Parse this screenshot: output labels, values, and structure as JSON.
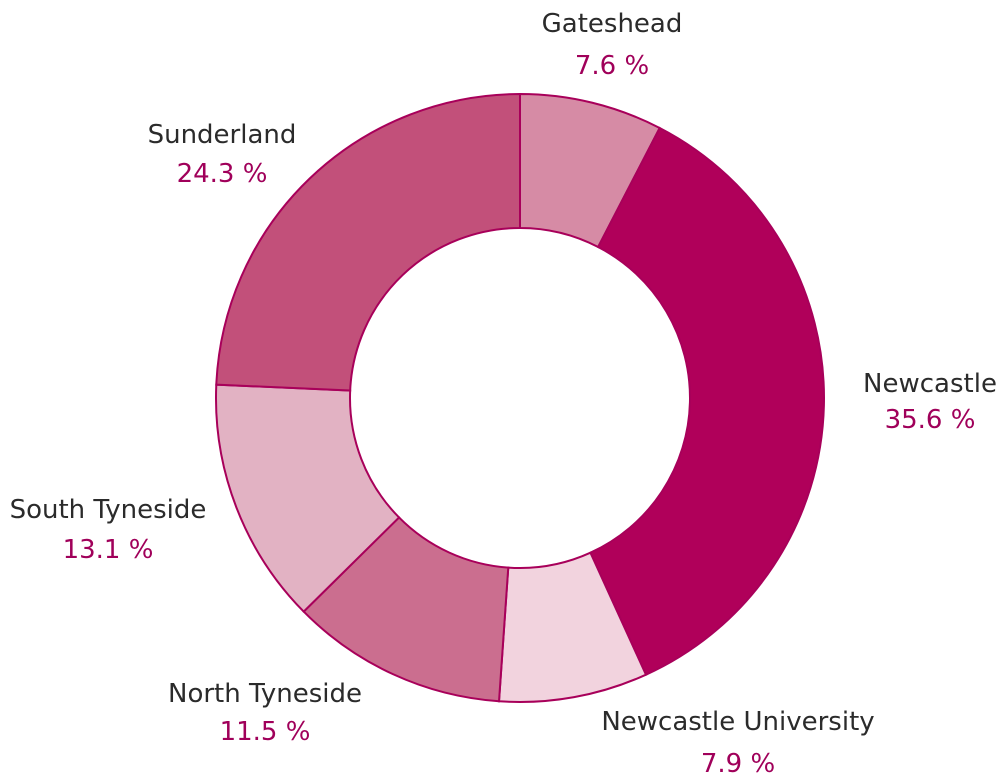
{
  "chart_data": {
    "type": "pie",
    "donut": true,
    "legend": "none",
    "slices": [
      {
        "label": "Gateshead",
        "value": 7.6,
        "value_text": "7.6 %",
        "color": "#d68ba5"
      },
      {
        "label": "Newcastle",
        "value": 35.6,
        "value_text": "35.6 %",
        "color": "#b0005a"
      },
      {
        "label": "Newcastle University",
        "value": 7.9,
        "value_text": "7.9 %",
        "color": "#f2d3de"
      },
      {
        "label": "North Tyneside",
        "value": 11.5,
        "value_text": "11.5 %",
        "color": "#cb6e8f"
      },
      {
        "label": "South Tyneside",
        "value": 13.1,
        "value_text": "13.1 %",
        "color": "#e2b2c3"
      },
      {
        "label": "Sunderland",
        "value": 24.3,
        "value_text": "24.3 %",
        "color": "#c2507a"
      }
    ]
  },
  "colors": {
    "stroke": "#a8005a",
    "value_text": "#a0005a",
    "label_text": "#2b2b2b",
    "background": "#ffffff"
  }
}
